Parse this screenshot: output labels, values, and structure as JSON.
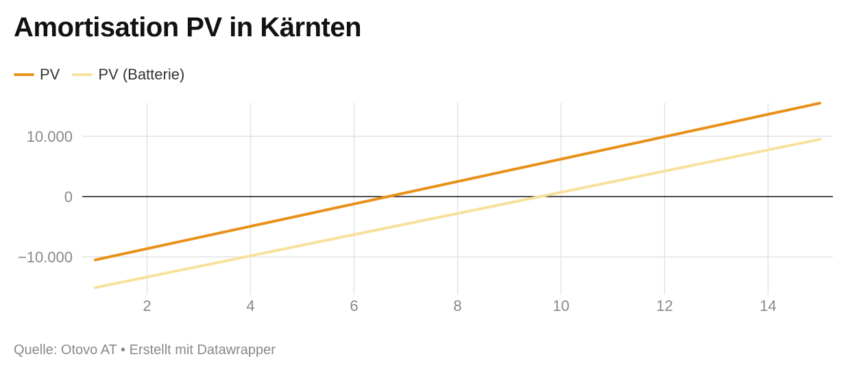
{
  "chart_data": {
    "type": "line",
    "title": "Amortisation PV in Kärnten",
    "xlabel": "",
    "ylabel": "",
    "xlim": [
      1,
      15
    ],
    "ylim": [
      -15000,
      15000
    ],
    "x_ticks": [
      2,
      4,
      6,
      8,
      10,
      12,
      14
    ],
    "y_ticks": [
      10000,
      0,
      -10000
    ],
    "y_tick_labels": [
      "10.000",
      "0",
      "−10.000"
    ],
    "grid": true,
    "legend_position": "top-left",
    "series": [
      {
        "name": "PV",
        "color": "#e8911a",
        "x": [
          1,
          15
        ],
        "y": [
          -10500,
          15500
        ]
      },
      {
        "name": "PV (Batterie)",
        "color": "#f7e19c",
        "x": [
          1,
          15
        ],
        "y": [
          -15100,
          9500
        ]
      }
    ]
  },
  "footer": "Quelle: Otovo AT • Erstellt mit Datawrapper"
}
